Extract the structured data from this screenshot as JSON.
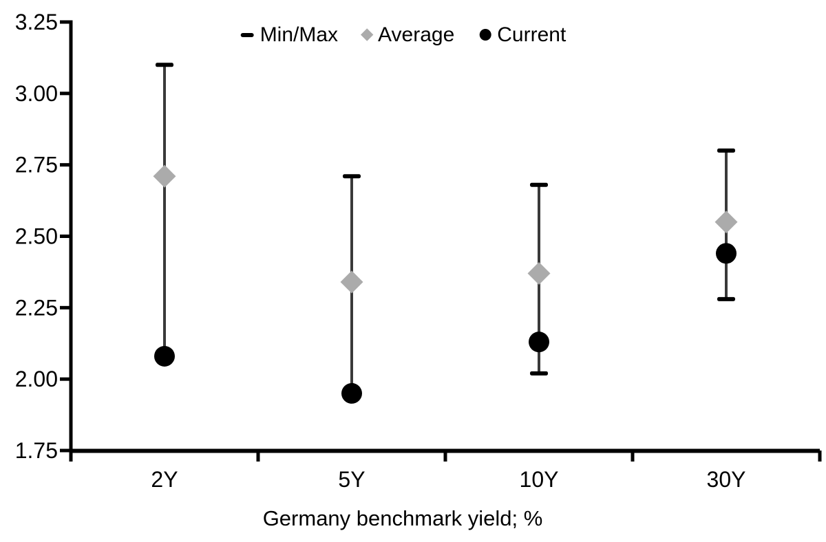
{
  "chart_data": {
    "type": "range_dot",
    "title": "",
    "xlabel": "Germany benchmark yield; %",
    "ylabel": "",
    "categories": [
      "2Y",
      "5Y",
      "10Y",
      "30Y"
    ],
    "series": [
      {
        "name": "Min/Max",
        "min": [
          2.08,
          1.95,
          2.02,
          2.28
        ],
        "max": [
          3.1,
          2.71,
          2.68,
          2.8
        ]
      },
      {
        "name": "Average",
        "values": [
          2.71,
          2.34,
          2.37,
          2.55
        ]
      },
      {
        "name": "Current",
        "values": [
          2.08,
          1.95,
          2.13,
          2.44
        ]
      }
    ],
    "ylim": [
      1.75,
      3.25
    ],
    "y_tick_step": 0.25,
    "y_ticks": [
      "3.25",
      "3.00",
      "2.75",
      "2.50",
      "2.25",
      "2.00",
      "1.75"
    ],
    "legend": [
      {
        "label": "Min/Max",
        "marker": "dash",
        "color": "#000000"
      },
      {
        "label": "Average",
        "marker": "diamond",
        "color": "#ABABAB"
      },
      {
        "label": "Current",
        "marker": "circle",
        "color": "#000000"
      }
    ],
    "legend_position": "top-center",
    "grid": false,
    "colors": {
      "axis": "#000000",
      "range_line": "#3A3A3A",
      "cap": "#000000",
      "average": "#ABABAB",
      "current": "#000000",
      "text": "#000000",
      "background": "#FFFFFF"
    }
  }
}
